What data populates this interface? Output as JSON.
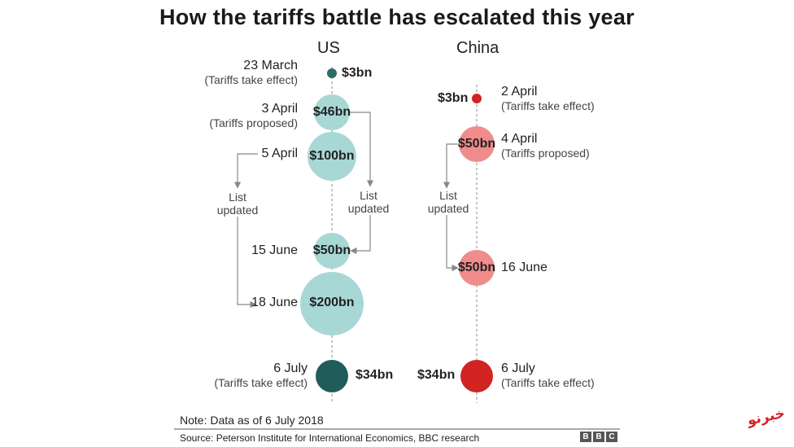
{
  "title": "How the tariffs battle has escalated this year",
  "us": {
    "label": "US",
    "events": [
      {
        "date": "23 March",
        "note": "(Tariffs take effect)",
        "amount": "$3bn"
      },
      {
        "date": "3 April",
        "note": "(Tariffs proposed)",
        "amount": "$46bn"
      },
      {
        "date": "5 April",
        "note": "",
        "amount": "$100bn"
      },
      {
        "date": "15 June",
        "note": "",
        "amount": "$50bn"
      },
      {
        "date": "18 June",
        "note": "",
        "amount": "$200bn"
      },
      {
        "date": "6 July",
        "note": "(Tariffs take effect)",
        "amount": "$34bn"
      }
    ],
    "list_updated_left": [
      "List",
      "updated"
    ],
    "list_updated_right": [
      "List",
      "updated"
    ]
  },
  "china": {
    "label": "China",
    "events": [
      {
        "date": "2 April",
        "note": "(Tariffs take effect)",
        "amount": "$3bn"
      },
      {
        "date": "4 April",
        "note": "(Tariffs proposed)",
        "amount": "$50bn"
      },
      {
        "date": "16 June",
        "note": "",
        "amount": "$50bn"
      },
      {
        "date": "6 July",
        "note": "(Tariffs take effect)",
        "amount": "$34bn"
      }
    ],
    "list_updated": [
      "List",
      "updated"
    ]
  },
  "footer": {
    "note": "Note: Data as of 6 July 2018",
    "source": "Source: Peterson Institute for International Economics, BBC research",
    "logo": "BBC"
  },
  "watermark": "خبرنو",
  "colors": {
    "us_light": "#a8d8d6",
    "us_dark": "#1f5c5a",
    "us_small": "#2b6e67",
    "china_light": "#f08c8c",
    "china_dark": "#d22323",
    "arrow": "#888888",
    "axis": "#888888"
  }
}
